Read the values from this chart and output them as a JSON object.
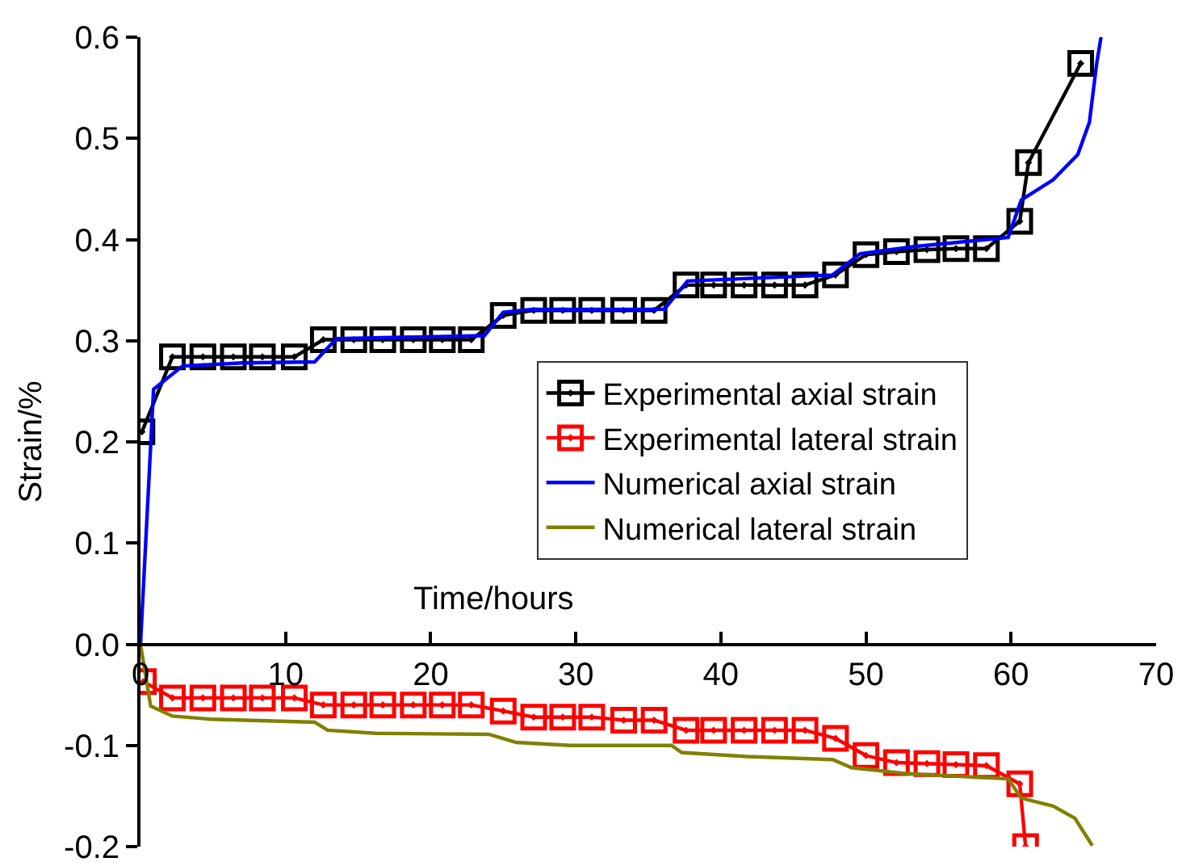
{
  "chart_data": {
    "type": "line",
    "xlabel": "Time/hours",
    "ylabel": "Strain/%",
    "xlim": [
      0,
      70
    ],
    "xticks": [
      0,
      10,
      20,
      30,
      40,
      50,
      60,
      70
    ],
    "ylim": [
      -0.2,
      0.6
    ],
    "yticks": [
      {
        "value": -0.2,
        "label": "-0.2"
      },
      {
        "value": -0.1,
        "label": "-0.1"
      },
      {
        "value": 0,
        "label": "0.0"
      },
      0.1,
      0.2,
      0.3,
      0.4,
      0.5,
      0.6
    ],
    "grid": false,
    "legend": "center right",
    "series": [
      {
        "name": "Experimental axial strain",
        "color": "#000000",
        "marker": "square",
        "x": [
          0.1,
          2.2,
          4.3,
          6.4,
          8.4,
          10.6,
          12.6,
          14.7,
          16.7,
          18.8,
          20.8,
          22.8,
          25,
          27.1,
          29.1,
          31.1,
          33.3,
          35.4,
          37.6,
          39.5,
          41.6,
          43.7,
          45.8,
          47.9,
          50,
          52.1,
          54.2,
          56.2,
          58.3,
          60.6,
          61.2,
          64.8
        ],
        "values": [
          0.21,
          0.284,
          0.284,
          0.284,
          0.284,
          0.284,
          0.301,
          0.301,
          0.301,
          0.301,
          0.301,
          0.301,
          0.325,
          0.33,
          0.33,
          0.33,
          0.33,
          0.33,
          0.355,
          0.355,
          0.355,
          0.355,
          0.355,
          0.365,
          0.385,
          0.388,
          0.39,
          0.391,
          0.391,
          0.418,
          0.476,
          0.574
        ]
      },
      {
        "name": "Experimental lateral strain",
        "color": "#ff0000",
        "marker": "square",
        "x": [
          0.2,
          2.2,
          4.3,
          6.4,
          8.4,
          10.6,
          12.6,
          14.7,
          16.7,
          18.8,
          20.8,
          22.8,
          25,
          27.1,
          29.1,
          31.1,
          33.3,
          35.4,
          37.6,
          39.5,
          41.6,
          43.7,
          45.8,
          47.9,
          50,
          52.1,
          54.2,
          56.2,
          58.3,
          60.6,
          61
        ],
        "values": [
          -0.037,
          -0.053,
          -0.053,
          -0.053,
          -0.053,
          -0.053,
          -0.06,
          -0.06,
          -0.06,
          -0.06,
          -0.06,
          -0.06,
          -0.066,
          -0.072,
          -0.072,
          -0.072,
          -0.075,
          -0.075,
          -0.085,
          -0.085,
          -0.085,
          -0.085,
          -0.085,
          -0.093,
          -0.11,
          -0.117,
          -0.118,
          -0.119,
          -0.12,
          -0.138,
          -0.2
        ]
      },
      {
        "name": "Numerical axial strain",
        "color": "#0000ff",
        "marker": "none",
        "x": [
          0,
          0.9,
          2.9,
          7,
          12,
          13.5,
          23.7,
          25,
          27,
          36.1,
          37.7,
          47.7,
          49.6,
          53.3,
          59.8,
          60.7,
          62.9,
          64.6,
          65.4,
          65.9,
          66.2
        ],
        "values": [
          0,
          0.252,
          0.275,
          0.278,
          0.279,
          0.302,
          0.305,
          0.328,
          0.331,
          0.331,
          0.359,
          0.365,
          0.386,
          0.393,
          0.402,
          0.439,
          0.459,
          0.484,
          0.516,
          0.574,
          0.6
        ]
      },
      {
        "name": "Numerical lateral strain",
        "color": "#808000",
        "marker": "none",
        "x": [
          0,
          0.7,
          2.2,
          4.8,
          12,
          12.9,
          16.2,
          24,
          25.9,
          29.6,
          36.6,
          37.3,
          41.8,
          47.7,
          49,
          52.9,
          59.8,
          60.7,
          62.9,
          64.4,
          65.6
        ],
        "values": [
          0,
          -0.061,
          -0.071,
          -0.074,
          -0.077,
          -0.085,
          -0.088,
          -0.089,
          -0.097,
          -0.1,
          -0.1,
          -0.107,
          -0.111,
          -0.114,
          -0.122,
          -0.128,
          -0.133,
          -0.152,
          -0.16,
          -0.172,
          -0.199
        ]
      }
    ]
  }
}
